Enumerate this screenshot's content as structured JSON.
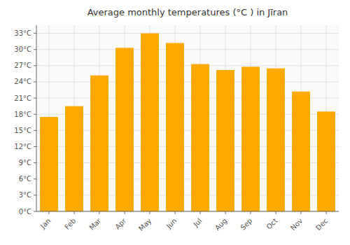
{
  "chart_data": {
    "type": "bar",
    "title": "Average monthly temperatures (°C ) in Jīran",
    "categories": [
      "Jan",
      "Feb",
      "Mar",
      "Apr",
      "May",
      "Jun",
      "Jul",
      "Aug",
      "Sep",
      "Oct",
      "Nov",
      "Dec"
    ],
    "values": [
      17.5,
      19.5,
      25.2,
      30.3,
      33.0,
      31.2,
      27.3,
      26.2,
      26.8,
      26.5,
      22.2,
      18.5
    ],
    "color": "#FFAA00",
    "ylim": [
      0,
      34.5
    ],
    "yticks": [
      {
        "value": 0,
        "label": "0°C"
      },
      {
        "value": 3,
        "label": "3°C"
      },
      {
        "value": 6,
        "label": "6°C"
      },
      {
        "value": 9,
        "label": "9°C"
      },
      {
        "value": 12,
        "label": "12°C"
      },
      {
        "value": 15,
        "label": "15°C"
      },
      {
        "value": 18,
        "label": "18°C"
      },
      {
        "value": 21,
        "label": "21°C"
      },
      {
        "value": 24,
        "label": "24°C"
      },
      {
        "value": 27,
        "label": "27°C"
      },
      {
        "value": 30,
        "label": "30°C"
      },
      {
        "value": 33,
        "label": "33°C"
      }
    ],
    "grid": true
  }
}
